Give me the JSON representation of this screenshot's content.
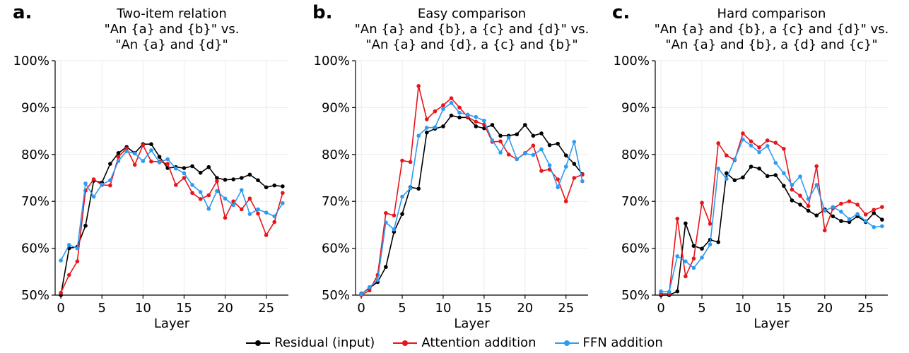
{
  "chart_data": [
    {
      "type": "line",
      "panel": "a.",
      "title_lines": [
        "Two-item relation",
        "\"An {a} and {b}\" vs.",
        "\"An {a} and {d}\""
      ],
      "xlabel": "Layer",
      "ylabel": "",
      "xlim": [
        -0.7,
        27.7
      ],
      "ylim": [
        50,
        100
      ],
      "xticks": [
        0,
        5,
        10,
        15,
        20,
        25
      ],
      "yticks": [
        50,
        60,
        70,
        80,
        90,
        100
      ],
      "ytick_labels": [
        "50%",
        "60%",
        "70%",
        "80%",
        "90%",
        "100%"
      ],
      "grid": true,
      "x": [
        0,
        1,
        2,
        3,
        4,
        5,
        6,
        7,
        8,
        9,
        10,
        11,
        12,
        13,
        14,
        15,
        16,
        17,
        18,
        19,
        20,
        21,
        22,
        23,
        24,
        25,
        26,
        27
      ],
      "series": [
        {
          "name": "Residual (input)",
          "color": "#000000",
          "values": [
            50.0,
            60.0,
            60.3,
            64.8,
            74.4,
            74.0,
            78.0,
            80.3,
            81.6,
            80.3,
            82.2,
            82.2,
            79.5,
            77.1,
            77.3,
            77.1,
            77.5,
            76.1,
            77.3,
            75.0,
            74.6,
            74.7,
            75.0,
            75.7,
            74.5,
            73.0,
            73.4,
            73.2
          ]
        },
        {
          "name": "Attention addition",
          "color": "#e8141b",
          "values": [
            50.5,
            54.3,
            57.2,
            72.3,
            74.7,
            73.5,
            73.4,
            79.5,
            81.3,
            77.8,
            82.0,
            78.5,
            78.5,
            78.0,
            73.5,
            75.0,
            71.8,
            70.5,
            71.3,
            74.3,
            66.5,
            70.0,
            68.3,
            70.6,
            67.4,
            62.8,
            65.6,
            71.8
          ]
        },
        {
          "name": "FFN addition",
          "color": "#2d9bf0",
          "values": [
            57.4,
            60.7,
            60.0,
            73.8,
            71.0,
            73.6,
            74.5,
            78.6,
            80.7,
            80.2,
            78.6,
            80.9,
            78.3,
            79.0,
            77.0,
            76.0,
            73.5,
            72.0,
            68.4,
            72.2,
            70.6,
            69.2,
            72.4,
            67.3,
            68.3,
            67.6,
            66.8,
            69.6
          ]
        }
      ]
    },
    {
      "type": "line",
      "panel": "b.",
      "title_lines": [
        "Easy comparison",
        "\"An {a} and {b}, a {c} and {d}\" vs.",
        "\"An {a} and {d}, a {c} and {b}\""
      ],
      "xlabel": "Layer",
      "ylabel": "",
      "xlim": [
        -0.7,
        27.7
      ],
      "ylim": [
        50,
        100
      ],
      "xticks": [
        0,
        5,
        10,
        15,
        20,
        25
      ],
      "yticks": [
        50,
        60,
        70,
        80,
        90,
        100
      ],
      "ytick_labels": [
        "50%",
        "60%",
        "70%",
        "80%",
        "90%",
        "100%"
      ],
      "grid": true,
      "x": [
        0,
        1,
        2,
        3,
        4,
        5,
        6,
        7,
        8,
        9,
        10,
        11,
        12,
        13,
        14,
        15,
        16,
        17,
        18,
        19,
        20,
        21,
        22,
        23,
        24,
        25,
        26,
        27
      ],
      "series": [
        {
          "name": "Residual (input)",
          "color": "#000000",
          "values": [
            50.3,
            51.5,
            52.8,
            56.0,
            63.5,
            67.3,
            73.0,
            72.7,
            84.7,
            85.5,
            86.0,
            88.3,
            87.9,
            87.9,
            86.0,
            85.6,
            86.3,
            84.0,
            84.0,
            84.3,
            86.3,
            84.0,
            84.5,
            82.0,
            82.3,
            79.8,
            78.0,
            75.8
          ]
        },
        {
          "name": "Attention addition",
          "color": "#e8141b",
          "values": [
            50.0,
            51.0,
            54.3,
            67.5,
            67.0,
            78.7,
            78.4,
            94.6,
            87.5,
            89.2,
            90.5,
            92.0,
            90.0,
            88.0,
            87.0,
            86.4,
            82.7,
            82.8,
            80.0,
            79.0,
            80.3,
            81.9,
            76.5,
            76.8,
            74.7,
            70.0,
            75.0,
            75.7
          ]
        },
        {
          "name": "FFN addition",
          "color": "#2d9bf0",
          "values": [
            50.2,
            51.7,
            53.2,
            65.5,
            64.0,
            71.0,
            72.8,
            84.0,
            85.7,
            85.8,
            89.7,
            91.0,
            88.9,
            88.5,
            88.0,
            87.2,
            83.0,
            80.4,
            83.6,
            79.0,
            80.2,
            79.9,
            81.1,
            77.7,
            73.0,
            77.4,
            82.7,
            74.3
          ]
        }
      ]
    },
    {
      "type": "line",
      "panel": "c.",
      "title_lines": [
        "Hard comparison",
        "\"An {a} and {b}, a {c} and {d}\" vs.",
        "\"An {a} and {b}, a {d} and {c}\""
      ],
      "xlabel": "Layer",
      "ylabel": "",
      "xlim": [
        -0.7,
        27.7
      ],
      "ylim": [
        50,
        100
      ],
      "xticks": [
        0,
        5,
        10,
        15,
        20,
        25
      ],
      "yticks": [
        50,
        60,
        70,
        80,
        90,
        100
      ],
      "ytick_labels": [
        "50%",
        "60%",
        "70%",
        "80%",
        "90%",
        "100%"
      ],
      "grid": true,
      "x": [
        0,
        1,
        2,
        3,
        4,
        5,
        6,
        7,
        8,
        9,
        10,
        11,
        12,
        13,
        14,
        15,
        16,
        17,
        18,
        19,
        20,
        21,
        22,
        23,
        24,
        25,
        26,
        27
      ],
      "series": [
        {
          "name": "Residual (input)",
          "color": "#000000",
          "values": [
            50.0,
            50.0,
            50.8,
            65.3,
            60.5,
            59.9,
            61.8,
            61.3,
            76.0,
            74.5,
            75.1,
            77.4,
            77.0,
            75.4,
            75.6,
            73.3,
            70.2,
            69.3,
            68.0,
            67.0,
            68.3,
            66.8,
            65.8,
            65.6,
            66.8,
            65.6,
            67.5,
            66.1
          ]
        },
        {
          "name": "Attention addition",
          "color": "#e8141b",
          "values": [
            50.3,
            50.3,
            66.3,
            54.0,
            57.8,
            69.7,
            65.2,
            82.4,
            79.8,
            78.8,
            84.5,
            82.8,
            81.5,
            83.0,
            82.5,
            81.2,
            72.5,
            71.2,
            69.0,
            77.5,
            63.8,
            68.5,
            69.5,
            70.0,
            69.3,
            67.2,
            68.2,
            68.8
          ]
        },
        {
          "name": "FFN addition",
          "color": "#2d9bf0",
          "values": [
            50.8,
            50.7,
            58.3,
            57.2,
            55.8,
            58.0,
            60.8,
            77.0,
            74.8,
            79.0,
            83.2,
            81.9,
            80.5,
            81.8,
            78.2,
            76.0,
            73.5,
            75.3,
            70.5,
            73.5,
            68.0,
            68.8,
            67.8,
            66.2,
            67.3,
            65.8,
            64.5,
            64.7
          ]
        }
      ]
    }
  ],
  "legend": [
    {
      "label": "Residual (input)",
      "color": "#000000"
    },
    {
      "label": "Attention addition",
      "color": "#e8141b"
    },
    {
      "label": "FFN addition",
      "color": "#2d9bf0"
    }
  ]
}
